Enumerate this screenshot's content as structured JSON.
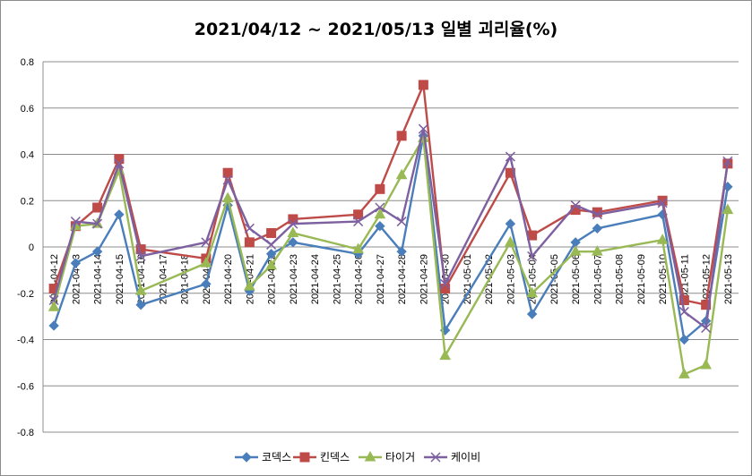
{
  "chart_data": {
    "type": "line",
    "title": "2021/04/12 ~ 2021/05/13 일별 괴리율(%)",
    "xlabel": "",
    "ylabel": "",
    "ylim": [
      -0.8,
      0.8
    ],
    "yticks": [
      0.8,
      0.6,
      0.4,
      0.2,
      0,
      -0.2,
      -0.4,
      -0.6,
      -0.8
    ],
    "grid": "horizontal",
    "legend_position": "bottom",
    "categories": [
      "2021-04-12",
      "2021-04-13",
      "2021-04-14",
      "2021-04-15",
      "2021-04-16",
      "2021-04-17",
      "2021-04-18",
      "2021-04-19",
      "2021-04-20",
      "2021-04-21",
      "2021-04-22",
      "2021-04-23",
      "2021-04-24",
      "2021-04-25",
      "2021-04-26",
      "2021-04-27",
      "2021-04-28",
      "2021-04-29",
      "2021-04-30",
      "2021-05-01",
      "2021-05-02",
      "2021-05-03",
      "2021-05-04",
      "2021-05-05",
      "2021-05-06",
      "2021-05-07",
      "2021-05-08",
      "2021-05-09",
      "2021-05-10",
      "2021-05-11",
      "2021-05-12",
      "2021-05-13"
    ],
    "series": [
      {
        "name": "코덱스",
        "color": "#4a7ebb",
        "marker": "diamond",
        "values": [
          -0.34,
          -0.07,
          -0.02,
          0.14,
          -0.25,
          null,
          null,
          -0.16,
          0.18,
          -0.19,
          -0.03,
          0.02,
          null,
          null,
          -0.03,
          0.09,
          -0.02,
          0.48,
          -0.36,
          null,
          null,
          0.1,
          -0.29,
          null,
          0.02,
          0.08,
          null,
          null,
          0.14,
          -0.4,
          -0.32,
          0.26
        ]
      },
      {
        "name": "킨덱스",
        "color": "#be4b48",
        "marker": "square",
        "values": [
          -0.18,
          0.09,
          0.17,
          0.38,
          -0.01,
          null,
          null,
          -0.05,
          0.32,
          0.02,
          0.06,
          0.12,
          null,
          null,
          0.14,
          0.25,
          0.48,
          0.7,
          -0.18,
          null,
          null,
          0.32,
          0.05,
          null,
          0.16,
          0.15,
          null,
          null,
          0.2,
          -0.23,
          -0.25,
          0.36
        ]
      },
      {
        "name": "타이거",
        "color": "#98b954",
        "marker": "triangle",
        "values": [
          -0.26,
          0.09,
          0.1,
          0.33,
          -0.19,
          null,
          null,
          -0.07,
          0.21,
          -0.17,
          -0.08,
          0.06,
          null,
          null,
          -0.01,
          0.14,
          0.31,
          0.47,
          -0.47,
          null,
          null,
          0.02,
          -0.2,
          null,
          -0.02,
          -0.02,
          null,
          null,
          0.03,
          -0.55,
          -0.51,
          0.16
        ]
      },
      {
        "name": "케이비",
        "color": "#7d60a0",
        "marker": "x",
        "values": [
          -0.23,
          0.11,
          0.1,
          0.36,
          -0.04,
          null,
          null,
          0.02,
          0.29,
          0.08,
          0.01,
          0.1,
          null,
          null,
          0.11,
          0.17,
          0.11,
          0.51,
          -0.16,
          null,
          null,
          0.39,
          -0.04,
          null,
          0.18,
          0.14,
          null,
          null,
          0.19,
          -0.28,
          -0.35,
          0.37
        ]
      }
    ]
  }
}
